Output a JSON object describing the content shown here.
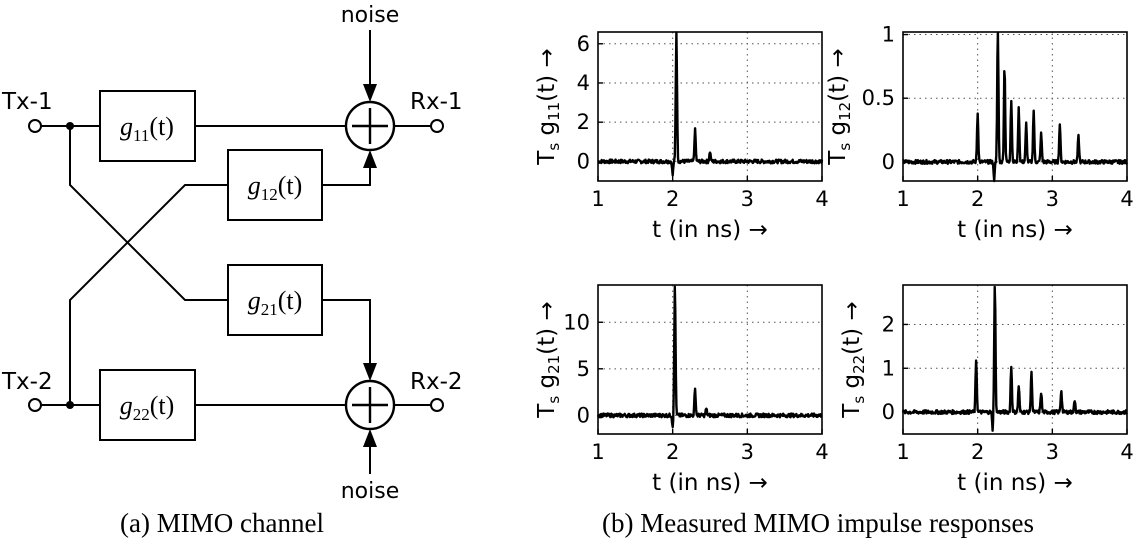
{
  "diagram": {
    "caption": "(a) MIMO channel",
    "inputs": [
      "Tx-1",
      "Tx-2"
    ],
    "outputs": [
      "Rx-1",
      "Rx-2"
    ],
    "noise_label": "noise",
    "blocks": [
      {
        "id": "g11",
        "base": "g",
        "sub": "11",
        "arg": "(t)"
      },
      {
        "id": "g12",
        "base": "g",
        "sub": "12",
        "arg": "(t)"
      },
      {
        "id": "g21",
        "base": "g",
        "sub": "21",
        "arg": "(t)"
      },
      {
        "id": "g22",
        "base": "g",
        "sub": "22",
        "arg": "(t)"
      }
    ]
  },
  "figure_b_caption": "(b) Measured MIMO impulse responses",
  "chart_data": [
    {
      "type": "line",
      "id": "g11",
      "xlabel": "t    (in ns) →",
      "ylabel_prefix": "T",
      "ylabel_sub_s": "s",
      "ylabel_g": "g",
      "ylabel_sub": "11",
      "ylabel_suffix": "(t)  →",
      "xlim": [
        1,
        4
      ],
      "ylim": [
        -1,
        6.6
      ],
      "xticks": [
        1,
        2,
        3,
        4
      ],
      "yticks": [
        0,
        2,
        4,
        6
      ],
      "grid": true,
      "peaks": [
        {
          "x": 2.05,
          "y": 6.6
        },
        {
          "x": 2.3,
          "y": 1.6
        },
        {
          "x": 2.5,
          "y": 0.5
        }
      ],
      "dips": [
        {
          "x": 2.0,
          "y": -0.7
        }
      ]
    },
    {
      "type": "line",
      "id": "g12",
      "xlabel": "t    (in ns) →",
      "ylabel_prefix": "T",
      "ylabel_sub_s": "s",
      "ylabel_g": "g",
      "ylabel_sub": "12",
      "ylabel_suffix": "(t)  →",
      "xlim": [
        1,
        4
      ],
      "ylim": [
        -0.15,
        1.02
      ],
      "xticks": [
        1,
        2,
        3,
        4
      ],
      "yticks": [
        0,
        0.5,
        1
      ],
      "ytick_labels": [
        "0",
        "0.5",
        "1"
      ],
      "grid": true,
      "peaks": [
        {
          "x": 2.0,
          "y": 0.38
        },
        {
          "x": 2.27,
          "y": 1.02
        },
        {
          "x": 2.36,
          "y": 0.75
        },
        {
          "x": 2.45,
          "y": 0.48
        },
        {
          "x": 2.55,
          "y": 0.42
        },
        {
          "x": 2.65,
          "y": 0.3
        },
        {
          "x": 2.75,
          "y": 0.4
        },
        {
          "x": 2.85,
          "y": 0.22
        },
        {
          "x": 3.1,
          "y": 0.3
        },
        {
          "x": 3.35,
          "y": 0.2
        }
      ],
      "dips": [
        {
          "x": 2.22,
          "y": -0.15
        }
      ]
    },
    {
      "type": "line",
      "id": "g21",
      "xlabel": "t    (in ns) →",
      "ylabel_prefix": "T",
      "ylabel_sub_s": "s",
      "ylabel_g": "g",
      "ylabel_sub": "21",
      "ylabel_suffix": "(t)  →",
      "xlim": [
        1,
        4
      ],
      "ylim": [
        -2,
        14
      ],
      "xticks": [
        1,
        2,
        3,
        4
      ],
      "yticks": [
        0,
        5,
        10
      ],
      "grid": true,
      "peaks": [
        {
          "x": 2.03,
          "y": 14
        },
        {
          "x": 2.3,
          "y": 2.8
        },
        {
          "x": 2.45,
          "y": 0.7
        }
      ],
      "dips": [
        {
          "x": 2.0,
          "y": -1.2
        }
      ]
    },
    {
      "type": "line",
      "id": "g22",
      "xlabel": "t    (in ns) →",
      "ylabel_prefix": "T",
      "ylabel_sub_s": "s",
      "ylabel_g": "g",
      "ylabel_sub": "22",
      "ylabel_suffix": "(t)  →",
      "xlim": [
        1,
        4
      ],
      "ylim": [
        -0.5,
        2.9
      ],
      "xticks": [
        1,
        2,
        3,
        4
      ],
      "yticks": [
        0,
        1,
        2
      ],
      "grid": true,
      "peaks": [
        {
          "x": 1.98,
          "y": 1.2
        },
        {
          "x": 2.23,
          "y": 2.9
        },
        {
          "x": 2.45,
          "y": 1.05
        },
        {
          "x": 2.55,
          "y": 0.6
        },
        {
          "x": 2.72,
          "y": 0.9
        },
        {
          "x": 2.85,
          "y": 0.45
        },
        {
          "x": 3.12,
          "y": 0.5
        },
        {
          "x": 3.3,
          "y": 0.28
        }
      ],
      "dips": [
        {
          "x": 2.2,
          "y": -0.4
        }
      ]
    }
  ]
}
